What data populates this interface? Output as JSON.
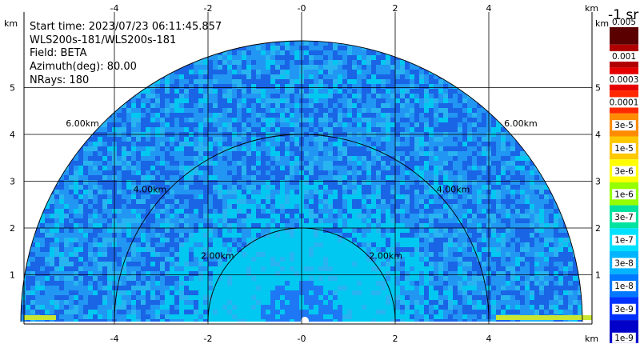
{
  "info": {
    "start_time": "Start time: 2023/07/23 06:11:45.857",
    "instrument": "WLS200s-181/WLS200s-181",
    "field": "Field: BETA",
    "azimuth": "Azimuth(deg): 80.00",
    "nrays": "NRays: 180"
  },
  "chart_data": {
    "type": "heatmap",
    "title": "",
    "xlabel": "km",
    "ylabel": "km",
    "xlim": [
      -6,
      6
    ],
    "ylim": [
      0,
      6
    ],
    "x_ticks": [
      "-4",
      "-2",
      "-0",
      "2",
      "4"
    ],
    "x_tick_values": [
      -4,
      -2,
      0,
      2,
      4
    ],
    "y_ticks": [
      "1",
      "2",
      "3",
      "4",
      "5"
    ],
    "y_tick_values": [
      1,
      2,
      3,
      4,
      5
    ],
    "axis_unit_label": "km",
    "grid": true,
    "max_range_km": 6,
    "range_rings": [
      {
        "radius_km": 2,
        "label": "2.00km"
      },
      {
        "radius_km": 4,
        "label": "4.00km"
      },
      {
        "radius_km": 6,
        "label": "6.00km"
      }
    ],
    "colorbar": {
      "title": "-1 sr",
      "labels": [
        "0.005",
        "0.001",
        "0.0003",
        "0.0001",
        "3e-5",
        "1e-5",
        "3e-6",
        "1e-6",
        "3e-7",
        "1e-7",
        "3e-8",
        "1e-8",
        "3e-9",
        "1e-9"
      ],
      "colors": [
        "#5a0000",
        "#b00000",
        "#e60000",
        "#ff2800",
        "#ff8c00",
        "#ffc800",
        "#ffff00",
        "#96ff00",
        "#00e3a0",
        "#00e0ff",
        "#00b4ff",
        "#0078ff",
        "#0032ff",
        "#0000c8"
      ]
    },
    "field_colors": {
      "near": "#1e78f5",
      "mid": "#00c8f0",
      "far_a": "#1a64e6",
      "far_b": "#2296f3",
      "far_c": "#28b4f0",
      "edge": "#c8e632"
    }
  }
}
